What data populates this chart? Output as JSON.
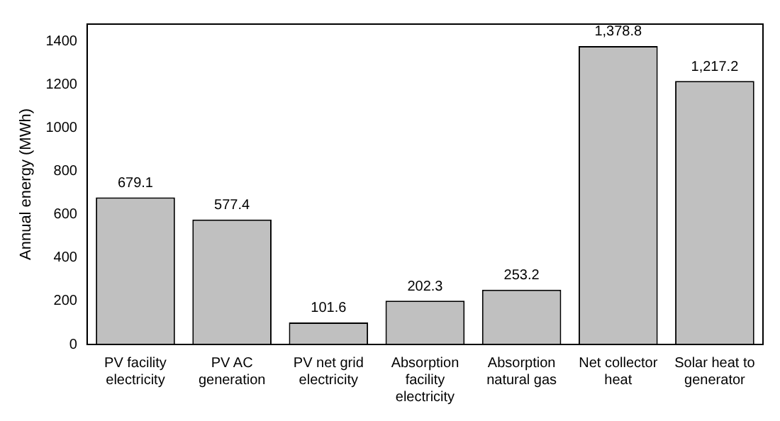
{
  "chart_data": {
    "type": "bar",
    "ylabel": "Annual energy (MWh)",
    "categories": [
      "PV facility electricity",
      "PV AC generation",
      "PV net grid electricity",
      "Absorption facility electricity",
      "Absorption natural gas",
      "Net collector heat",
      "Solar heat to generator"
    ],
    "values": [
      679.1,
      577.4,
      101.6,
      202.3,
      253.2,
      1378.8,
      1217.2
    ],
    "value_labels": [
      "679.1",
      "577.4",
      "101.6",
      "202.3",
      "253.2",
      "1,378.8",
      "1,217.2"
    ],
    "color": "#c0c0c0",
    "ylim": [
      0,
      1480
    ],
    "yticks": [
      0,
      200,
      400,
      600,
      800,
      1000,
      1200,
      1400
    ],
    "grid": false
  }
}
